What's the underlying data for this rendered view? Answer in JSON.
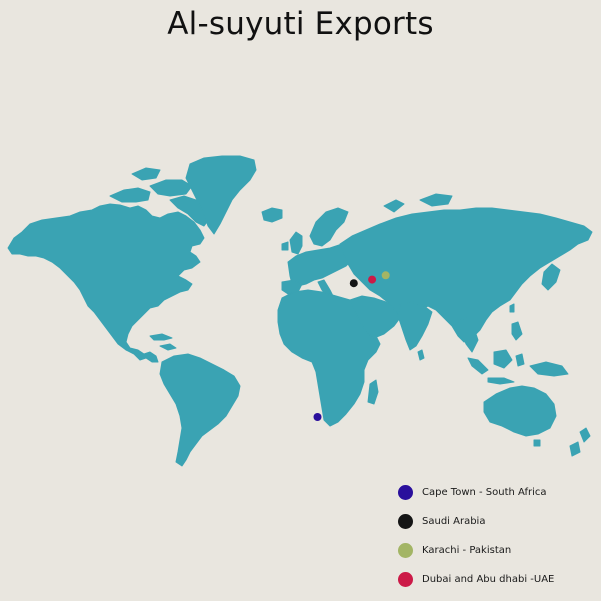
{
  "title": "Al-suyuti Exports",
  "colors": {
    "background": "#e9e6df",
    "land": "#3aa3b3",
    "title_text": "#111111"
  },
  "markers": [
    {
      "name": "cape-town",
      "label": "Cape Town - South Africa",
      "color": "#2a0f9c",
      "lon": 18.4,
      "lat": -33.9
    },
    {
      "name": "saudi-arabia",
      "label": "Saudi Arabia",
      "color": "#151515",
      "lon": 45.5,
      "lat": 24.0
    },
    {
      "name": "karachi",
      "label": "Karachi - Pakistan",
      "color": "#a3b565",
      "lon": 67.0,
      "lat": 24.9
    },
    {
      "name": "dubai-abu-dhabi",
      "label": "Dubai and Abu dhabi -UAE",
      "color": "#cc1a47",
      "lon": 55.3,
      "lat": 25.2
    }
  ],
  "legend": [
    {
      "label": "Cape Town - South Africa",
      "color": "#2a0f9c"
    },
    {
      "label": "Saudi Arabia",
      "color": "#151515"
    },
    {
      "label": "Karachi - Pakistan",
      "color": "#a3b565"
    },
    {
      "label": "Dubai and Abu dhabi -UAE",
      "color": "#cc1a47"
    }
  ]
}
